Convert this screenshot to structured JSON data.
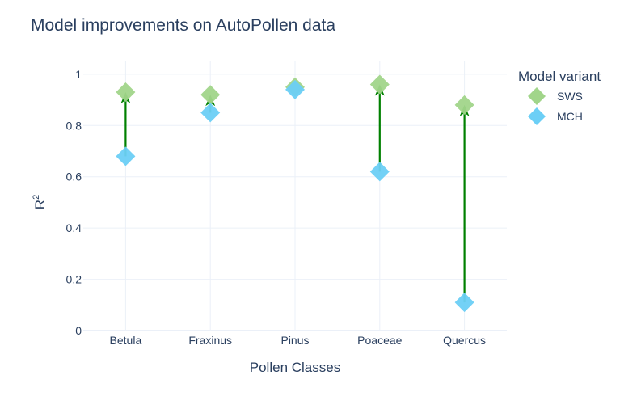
{
  "chart_data": {
    "type": "scatter",
    "title": "Model improvements on AutoPollen data",
    "xlabel": "Pollen Classes",
    "ylabel": "R",
    "ylabel_sup": "2",
    "categories": [
      "Betula",
      "Fraxinus",
      "Pinus",
      "Poaceae",
      "Quercus"
    ],
    "ylim": [
      0,
      1.05
    ],
    "yticks": [
      0,
      0.2,
      0.4,
      0.6,
      0.8,
      1
    ],
    "ytick_labels": [
      "0",
      "0.2",
      "0.4",
      "0.6",
      "0.8",
      "1"
    ],
    "grid": true,
    "legend": {
      "title": "Model variant",
      "position": "right"
    },
    "series": [
      {
        "name": "SWS",
        "color": "#a1d58a",
        "marker": "diamond",
        "values": [
          0.93,
          0.92,
          0.95,
          0.96,
          0.88
        ]
      },
      {
        "name": "MCH",
        "color": "#6ccff6",
        "marker": "diamond",
        "values": [
          0.68,
          0.85,
          0.94,
          0.62,
          0.11
        ]
      }
    ],
    "arrows": {
      "color": "#008000",
      "from_series": "MCH",
      "to_series": "SWS"
    }
  }
}
